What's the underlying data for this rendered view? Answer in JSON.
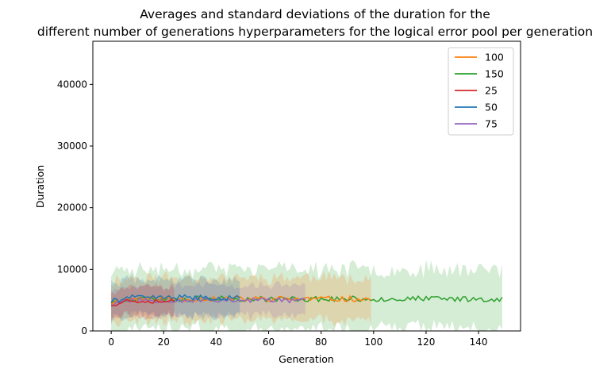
{
  "chart_data": {
    "type": "line",
    "title_line1": "Averages and standard deviations of the duration for the",
    "title_line2": "different number of generations hyperparameters for the logical error pool per generation",
    "xlabel": "Generation",
    "ylabel": "Duration",
    "xlim": [
      -7,
      156
    ],
    "ylim": [
      0,
      47000
    ],
    "x_ticks": [
      0,
      20,
      40,
      60,
      80,
      100,
      120,
      140
    ],
    "y_ticks": [
      0,
      10000,
      20000,
      30000,
      40000
    ],
    "x_tick_labels": [
      "0",
      "20",
      "40",
      "60",
      "80",
      "100",
      "120",
      "140"
    ],
    "y_tick_labels": [
      "0",
      "10000",
      "20000",
      "30000",
      "40000"
    ],
    "legend_position": "top-right",
    "grid": false,
    "band": "mean ± standard deviation (shaded)",
    "series": [
      {
        "name": "100",
        "color": "#ff7f0e",
        "generations": 100,
        "mean": 5200,
        "std": 3500,
        "amp": 450,
        "seed": 11
      },
      {
        "name": "150",
        "color": "#2ca02c",
        "generations": 150,
        "mean": 5200,
        "std": 4800,
        "amp": 450,
        "seed": 23
      },
      {
        "name": "25",
        "color": "#d62728",
        "generations": 25,
        "mean": 4900,
        "std": 2300,
        "amp": 400,
        "seed": 37
      },
      {
        "name": "50",
        "color": "#1f77b4",
        "generations": 50,
        "mean": 5400,
        "std": 2900,
        "amp": 450,
        "seed": 41
      },
      {
        "name": "75",
        "color": "#9467bd",
        "generations": 75,
        "mean": 5000,
        "std": 2400,
        "amp": 420,
        "seed": 53
      }
    ]
  }
}
